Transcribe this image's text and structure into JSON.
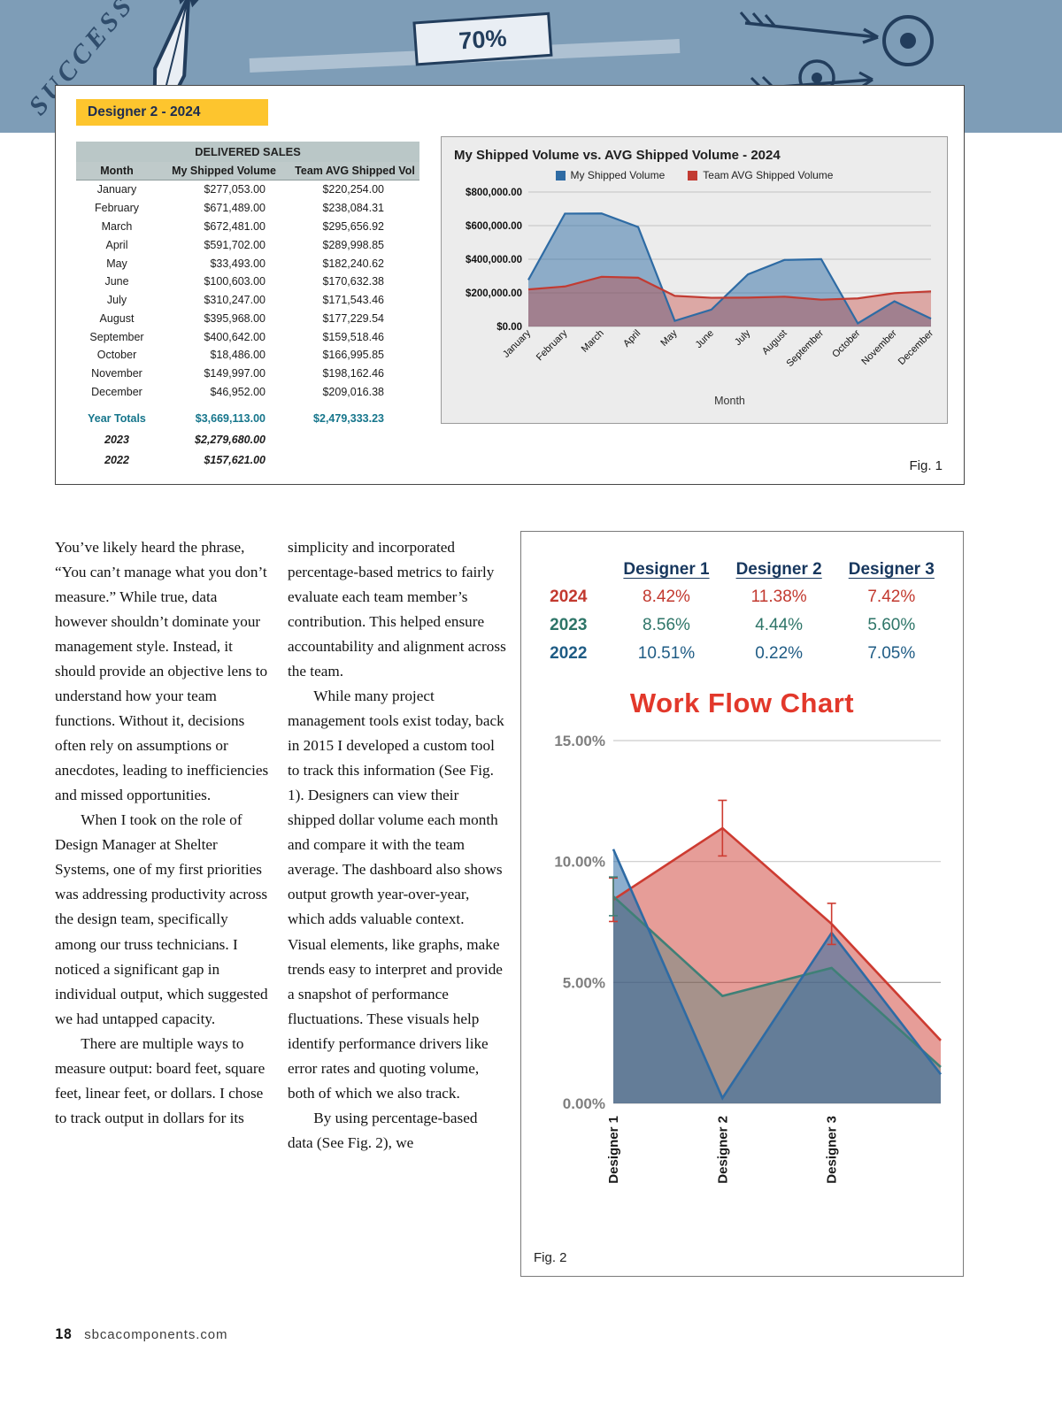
{
  "page": {
    "page_number": "18",
    "site": "sbcacomponents.com"
  },
  "header": {
    "success": "SUCCESS",
    "seventy": "70%"
  },
  "fig1": {
    "tag": "Designer 2 - 2024",
    "caption": "Fig. 1",
    "table": {
      "title": "DELIVERED SALES",
      "columns": [
        "Month",
        "My Shipped Volume",
        "Team AVG Shipped Vol"
      ],
      "rows": [
        [
          "January",
          "$277,053.00",
          "$220,254.00"
        ],
        [
          "February",
          "$671,489.00",
          "$238,084.31"
        ],
        [
          "March",
          "$672,481.00",
          "$295,656.92"
        ],
        [
          "April",
          "$591,702.00",
          "$289,998.85"
        ],
        [
          "May",
          "$33,493.00",
          "$182,240.62"
        ],
        [
          "June",
          "$100,603.00",
          "$170,632.38"
        ],
        [
          "July",
          "$310,247.00",
          "$171,543.46"
        ],
        [
          "August",
          "$395,968.00",
          "$177,229.54"
        ],
        [
          "September",
          "$400,642.00",
          "$159,518.46"
        ],
        [
          "October",
          "$18,486.00",
          "$166,995.85"
        ],
        [
          "November",
          "$149,997.00",
          "$198,162.46"
        ],
        [
          "December",
          "$46,952.00",
          "$209,016.38"
        ]
      ],
      "totals": [
        "Year Totals",
        "$3,669,113.00",
        "$2,479,333.23"
      ],
      "history": [
        [
          "2023",
          "$2,279,680.00"
        ],
        [
          "2022",
          "$157,621.00"
        ]
      ]
    }
  },
  "article": {
    "column1": [
      "You’ve likely heard the phrase, “You can’t manage what you don’t measure.” While true, data however shouldn’t dominate your management style. Instead, it should provide an objective lens to understand how your team functions. Without it, decisions often rely on assumptions or anecdotes, leading to inefficiencies and missed opportunities.",
      "When I took on the role of Design Manager at Shelter Systems, one of my first priorities was addressing productivity across the design team, specifically among our truss technicians. I noticed a significant gap in individual output, which suggested we had untapped capacity.",
      "There are multiple ways to measure output: board feet, square feet, linear feet, or dollars. I chose to track output in dollars for its"
    ],
    "column2": [
      "simplicity and incorporated percentage-based metrics to fairly evaluate each team member’s contribution. This helped ensure accountability and alignment across the team.",
      "While many project management tools exist today, back in 2015 I developed a custom tool to track this information (See Fig. 1). Designers can view their shipped dollar volume each month and compare it with the team average. The dashboard also shows output growth year-over-year, which adds valuable context. Visual elements, like graphs, make trends easy to interpret and provide a snapshot of performance fluctuations. These visuals help identify performance drivers like error rates and quoting volume, both of which we also track.",
      "By using percentage-based data (See Fig. 2), we"
    ]
  },
  "fig2": {
    "caption": "Fig. 2",
    "chart_title": "Work Flow Chart",
    "table": {
      "columns": [
        "Designer 1",
        "Designer 2",
        "Designer 3"
      ],
      "rows": [
        {
          "year": "2024",
          "values": [
            "8.42%",
            "11.38%",
            "7.42%"
          ],
          "color": "#c2392f"
        },
        {
          "year": "2023",
          "values": [
            "8.56%",
            "4.44%",
            "5.60%"
          ],
          "color": "#2e7568"
        },
        {
          "year": "2022",
          "values": [
            "10.51%",
            "0.22%",
            "7.05%"
          ],
          "color": "#1f5c85"
        }
      ]
    }
  },
  "chart_data": [
    {
      "type": "area",
      "title": "My Shipped Volume vs. AVG Shipped Volume - 2024",
      "xlabel": "Month",
      "ylabel": "",
      "categories": [
        "January",
        "February",
        "March",
        "April",
        "May",
        "June",
        "July",
        "August",
        "September",
        "October",
        "November",
        "December"
      ],
      "series": [
        {
          "name": "My Shipped Volume",
          "color": "#2e6ba4",
          "values": [
            277053,
            671489,
            672481,
            591702,
            33493,
            100603,
            310247,
            395968,
            400642,
            18486,
            149997,
            46952
          ]
        },
        {
          "name": "Team AVG Shipped Volume",
          "color": "#c23b32",
          "values": [
            220254,
            238084.31,
            295656.92,
            289998.85,
            182240.62,
            170632.38,
            171543.46,
            177229.54,
            159518.46,
            166995.85,
            198162.46,
            209016.38
          ]
        }
      ],
      "ylim": [
        0,
        800000
      ],
      "ytick_labels": [
        "$0.00",
        "$200,000.00",
        "$400,000.00",
        "$600,000.00",
        "$800,000.00"
      ],
      "grid": true,
      "legend_position": "top"
    },
    {
      "type": "line",
      "title": "Work Flow Chart",
      "categories": [
        "Designer 1",
        "Designer 2",
        "Designer 3",
        ""
      ],
      "series": [
        {
          "name": "2024",
          "color": "#cd3b31",
          "values": [
            8.42,
            11.38,
            7.42,
            2.6
          ],
          "error": [
            0.9,
            1.15,
            0.85,
            0
          ]
        },
        {
          "name": "2023",
          "color": "#3f8077",
          "values": [
            8.56,
            4.44,
            5.6,
            1.5
          ],
          "error": [
            0.8,
            0,
            0,
            0
          ]
        },
        {
          "name": "2022",
          "color": "#2e6ba4",
          "values": [
            10.51,
            0.22,
            7.05,
            1.2
          ]
        }
      ],
      "ylim": [
        0,
        15
      ],
      "ytick_labels": [
        "0.00%",
        "5.00%",
        "10.00%",
        "15.00%"
      ],
      "grid": true,
      "legend_position": "none"
    }
  ]
}
